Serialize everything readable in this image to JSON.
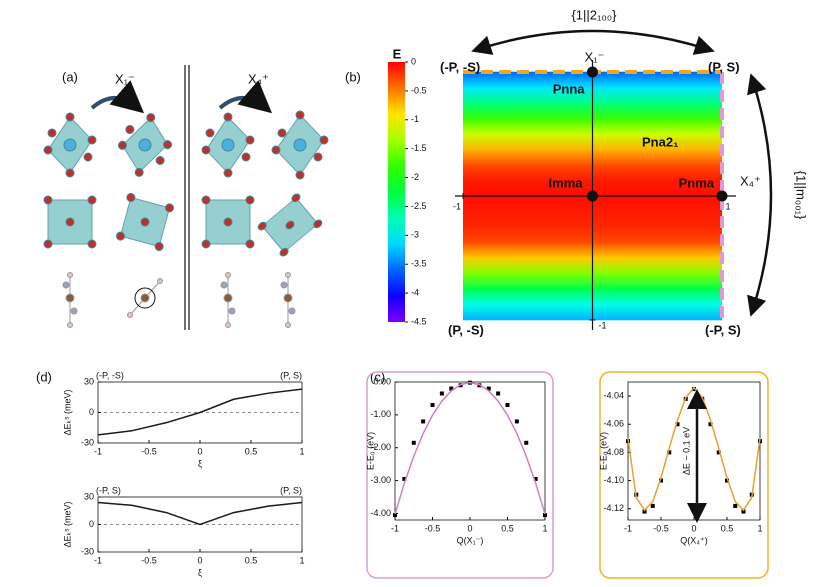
{
  "panels": [
    "(a)",
    "(b)",
    "(c)",
    "(d)"
  ],
  "structure": {
    "labels": [
      "X₁⁻",
      "X₄⁺"
    ]
  },
  "chart_data": [
    {
      "type": "heatmap",
      "xlabel": "X₄⁺",
      "ylabel": "X₁⁻",
      "colorbar_label": "E",
      "colormap": "rainbow",
      "xlim": [
        -1,
        1
      ],
      "ylim": [
        -1,
        1
      ],
      "xticks": [
        -1,
        1
      ],
      "yticks": [
        -1
      ],
      "zlim": [
        -4.5,
        0
      ],
      "zticks": [
        0,
        -0.5,
        -1,
        -1.5,
        -2,
        -2.5,
        -3,
        -3.5,
        -4,
        -4.5
      ],
      "y": [
        -1,
        -0.875,
        -0.75,
        -0.625,
        -0.5,
        -0.375,
        -0.25,
        -0.125,
        0,
        0.125,
        0.25,
        0.375,
        0.5,
        0.625,
        0.75,
        0.875,
        1
      ],
      "values": [
        -3.3,
        -2.9,
        -2.3,
        -1.5,
        -0.8,
        -0.3,
        -0.15,
        -0.1,
        -0.05,
        -0.1,
        -0.3,
        -0.7,
        -1.2,
        -1.8,
        -2.5,
        -3.1,
        -3.6
      ],
      "points": [
        {
          "label": "Pnna",
          "x": 0,
          "y": 1
        },
        {
          "label": "Imma",
          "x": 0,
          "y": 0
        },
        {
          "label": "Pnma",
          "x": 1,
          "y": 0
        }
      ],
      "region_label": "Pna2₁",
      "corners": [
        "(-P, -S)",
        "(P, S)",
        "(P, -S)",
        "(-P, S)"
      ],
      "operations": [
        "{1||2₁₀₀}",
        "{1||m₀₀₁}"
      ]
    },
    {
      "type": "line",
      "xlabel": "Q(X₁⁻)",
      "ylabel": "E-E₀ (eV)",
      "frame_color": "#d99fd0",
      "xlim": [
        -1,
        1
      ],
      "ylim": [
        -4.2,
        0
      ],
      "xticks": [
        -1,
        -0.5,
        0,
        0.5,
        1
      ],
      "yticks": [
        {
          "value": 0,
          "label": "0.00"
        },
        {
          "value": -1,
          "label": "-1.00"
        },
        {
          "value": -2,
          "label": "-2.00"
        },
        {
          "value": -3,
          "label": "-3.00"
        },
        {
          "value": -4,
          "label": "-4.00"
        }
      ],
      "series": [
        {
          "mode": "markers",
          "color": "#000000",
          "x": [
            -1,
            -0.875,
            -0.75,
            -0.625,
            -0.5,
            -0.375,
            -0.25,
            -0.125,
            0,
            0.125,
            0.25,
            0.375,
            0.5,
            0.625,
            0.75,
            0.875,
            1
          ],
          "values": [
            -4.05,
            -2.95,
            -1.85,
            -1.2,
            -0.7,
            -0.35,
            -0.2,
            -0.1,
            -0.02,
            -0.1,
            -0.2,
            -0.35,
            -0.7,
            -1.2,
            -1.85,
            -2.95,
            -4.05
          ]
        },
        {
          "mode": "line",
          "color": "#d67fc0",
          "x": [
            -1,
            -0.875,
            -0.75,
            -0.625,
            -0.5,
            -0.375,
            -0.25,
            -0.125,
            0,
            0.125,
            0.25,
            0.375,
            0.5,
            0.625,
            0.75,
            0.875,
            1
          ],
          "values": [
            -4.02,
            -3.08,
            -2.26,
            -1.57,
            -1.01,
            -0.58,
            -0.27,
            -0.08,
            -0.02,
            -0.08,
            -0.27,
            -0.58,
            -1.01,
            -1.57,
            -2.26,
            -3.08,
            -4.02
          ]
        }
      ]
    },
    {
      "type": "line",
      "xlabel": "Q(X₄⁺)",
      "ylabel": "E-E₀ (eV)",
      "frame_color": "#f0b428",
      "annotation": "ΔE ~ 0.1 eV",
      "xlim": [
        -1,
        1
      ],
      "ylim": [
        -4.128,
        -4.03
      ],
      "xticks": [
        -1,
        -0.5,
        0,
        0.5,
        1
      ],
      "yticks": [
        -4.04,
        -4.06,
        -4.08,
        {
          "value": -4.1,
          "label": "-4.10"
        },
        -4.12
      ],
      "series": [
        {
          "mode": "markers",
          "color": "#000000",
          "x": [
            -1,
            -0.875,
            -0.75,
            -0.625,
            -0.5,
            -0.375,
            -0.25,
            -0.125,
            0,
            0.125,
            0.25,
            0.375,
            0.5,
            0.625,
            0.75,
            0.875,
            1
          ],
          "values": [
            -4.072,
            -4.11,
            -4.122,
            -4.118,
            -4.1,
            -4.08,
            -4.06,
            -4.042,
            -4.035,
            -4.042,
            -4.06,
            -4.08,
            -4.1,
            -4.118,
            -4.122,
            -4.11,
            -4.072
          ]
        },
        {
          "mode": "line",
          "color": "#e8a030",
          "x": [
            -1,
            -0.875,
            -0.75,
            -0.625,
            -0.5,
            -0.375,
            -0.25,
            -0.125,
            0,
            0.125,
            0.25,
            0.375,
            0.5,
            0.625,
            0.75,
            0.875,
            1
          ],
          "values": [
            -4.07,
            -4.112,
            -4.121,
            -4.115,
            -4.098,
            -4.077,
            -4.057,
            -4.041,
            -4.034,
            -4.041,
            -4.057,
            -4.077,
            -4.098,
            -4.115,
            -4.121,
            -4.112,
            -4.07
          ]
        }
      ]
    },
    {
      "type": "line",
      "xlabel": "ξ",
      "ylabel": "ΔEₖˢ (meV)",
      "zero_line": true,
      "corner_labels": [
        "(-P, -S)",
        "(P, S)"
      ],
      "xlim": [
        -1,
        1
      ],
      "ylim": [
        -30,
        30
      ],
      "xticks": [
        -1,
        -0.5,
        0,
        0.5,
        1
      ],
      "yticks": [
        -30,
        0,
        30
      ],
      "series": [
        {
          "mode": "line",
          "color": "#1a1a1a",
          "x": [
            -1,
            -0.67,
            -0.33,
            0,
            0.33,
            0.67,
            1
          ],
          "values": [
            -22,
            -18,
            -10,
            0,
            13,
            19,
            23
          ]
        }
      ]
    },
    {
      "type": "line",
      "xlabel": "ξ",
      "ylabel": "ΔEₖˢ (meV)",
      "zero_line": true,
      "corner_labels": [
        "(-P, S)",
        "(P, S)"
      ],
      "xlim": [
        -1,
        1
      ],
      "ylim": [
        -30,
        30
      ],
      "xticks": [
        -1,
        -0.5,
        0,
        0.5,
        1
      ],
      "yticks": [
        -30,
        0,
        30
      ],
      "series": [
        {
          "mode": "line",
          "color": "#1a1a1a",
          "x": [
            -1,
            -0.67,
            -0.33,
            0,
            0.33,
            0.67,
            1
          ],
          "values": [
            24,
            21,
            13,
            0,
            13,
            20,
            24
          ]
        }
      ]
    }
  ]
}
